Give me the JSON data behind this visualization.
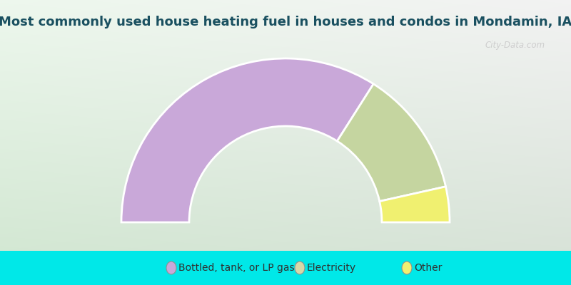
{
  "title": "Most commonly used house heating fuel in houses and condos in Mondamin, IA",
  "categories": [
    "Bottled, tank, or LP gas",
    "Electricity",
    "Other"
  ],
  "values": [
    68.0,
    25.0,
    7.0
  ],
  "colors": [
    "#c9a8d9",
    "#c5d5a0",
    "#f0f070"
  ],
  "legend_marker_colors": [
    "#c9a8d9",
    "#d8d8a8",
    "#f0f070"
  ],
  "bg_color_top": "#f4fdf4",
  "bg_color_bottom": "#c8e8c0",
  "legend_bg": "#00e8e8",
  "title_color": "#1a5060",
  "title_fontsize": 13,
  "legend_fontsize": 10,
  "watermark_text": "City-Data.com",
  "watermark_color": "#c8c8c8"
}
